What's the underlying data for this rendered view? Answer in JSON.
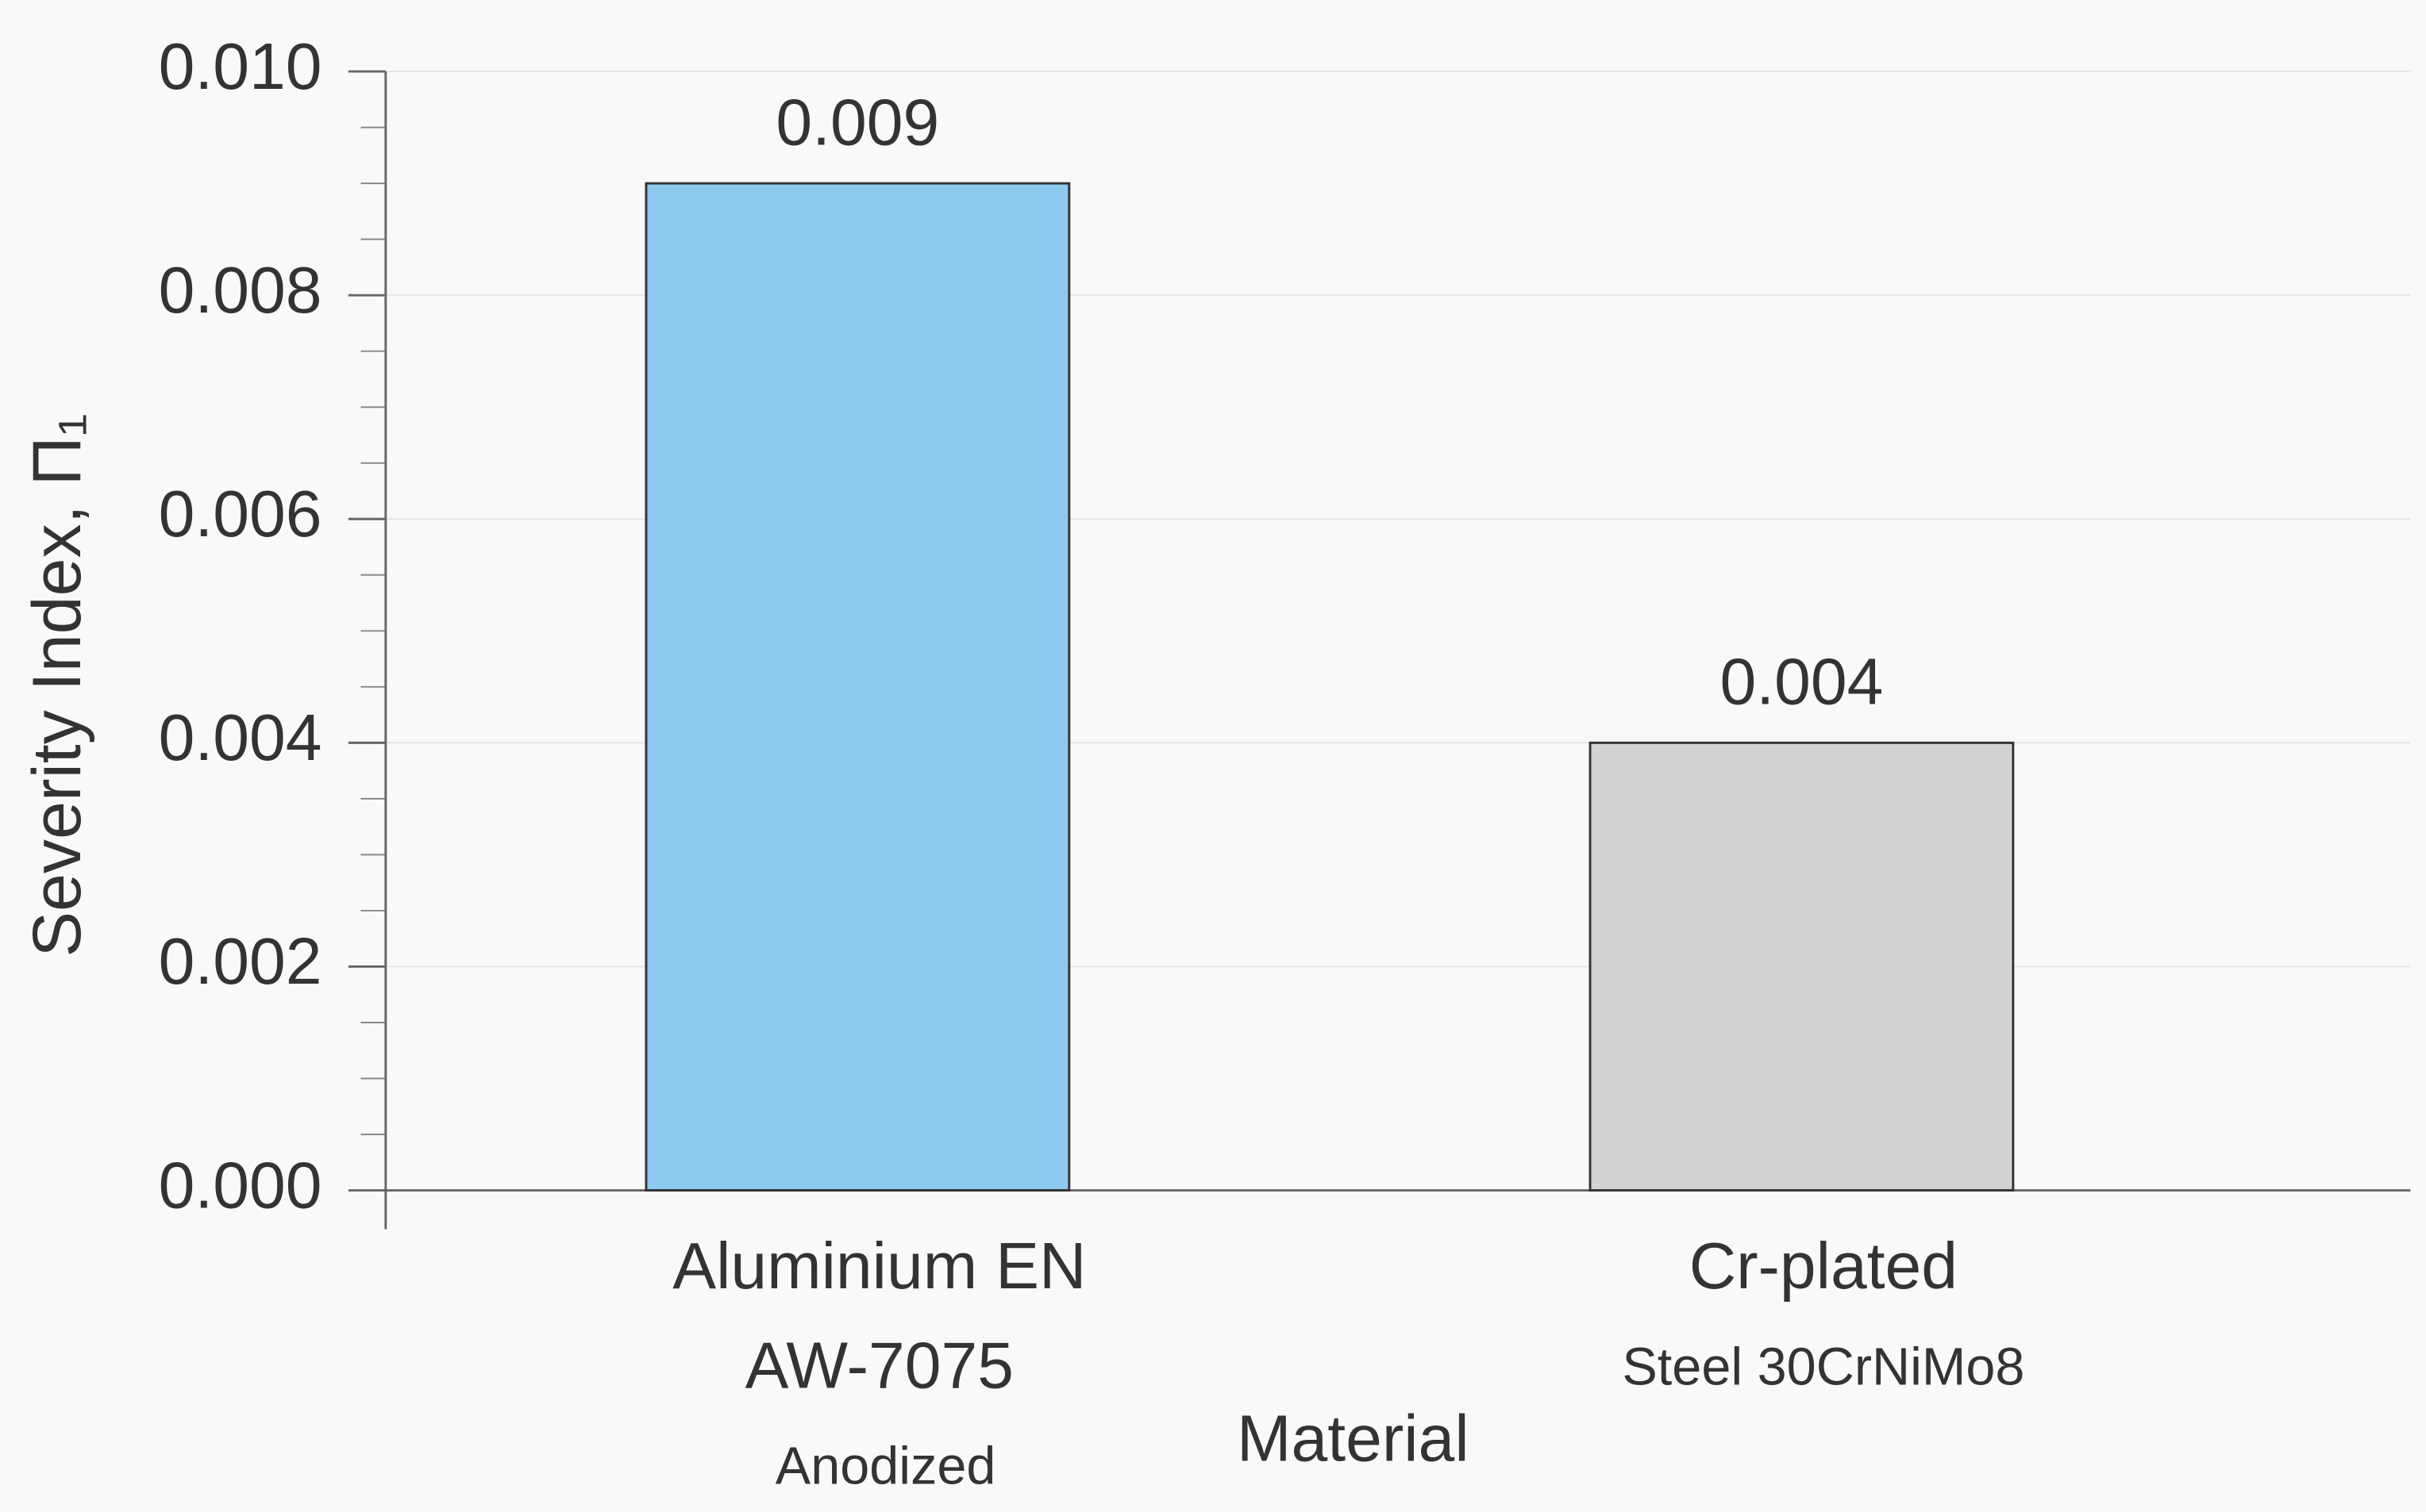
{
  "chart_data": {
    "type": "bar",
    "categories": [
      [
        "Aluminium EN",
        "AW-7075",
        "Anodized"
      ],
      [
        "Cr-plated",
        "Steel 30CrNiMo8"
      ]
    ],
    "values": [
      0.009,
      0.004
    ],
    "colors": [
      "#8ec9f0",
      "#d3d3d6"
    ],
    "xlabel": "Material",
    "ylabel": "Severity Index, Π₁",
    "ylim": [
      0,
      0.01
    ],
    "yticks": [
      {
        "value": 0,
        "label": "0.000"
      },
      {
        "value": 0.002,
        "label": "0.002"
      },
      {
        "value": 0.004,
        "label": "0.004"
      },
      {
        "value": 0.006,
        "label": "0.006"
      },
      {
        "value": 0.008,
        "label": "0.008"
      },
      {
        "value": 0.01,
        "label": "0.010"
      }
    ],
    "grid": true
  }
}
